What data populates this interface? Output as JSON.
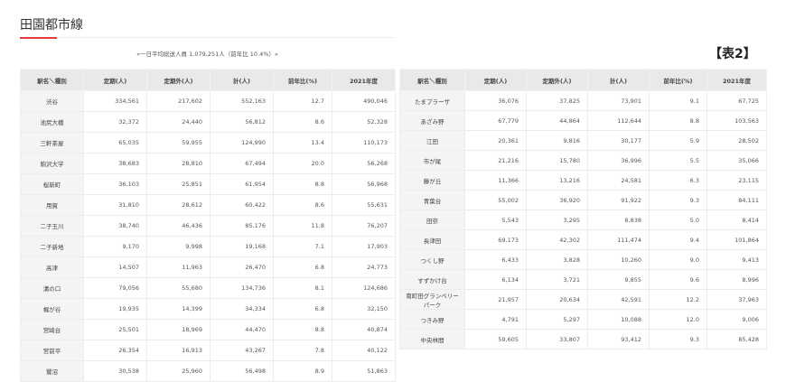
{
  "title": "田園都市線",
  "subtitle": "«一日平均総送人員 1,079,251人（前年比 10.4%）»",
  "table2_label": "【表2】",
  "headers": [
    "駅名＼種別",
    "定期(人)",
    "定期外(人)",
    "計(人)",
    "前年比(%)",
    "2021年度"
  ],
  "table1": [
    [
      "渋谷",
      "334,561",
      "217,602",
      "552,163",
      "12.7",
      "490,046"
    ],
    [
      "池尻大橋",
      "32,372",
      "24,440",
      "56,812",
      "8.6",
      "52,328"
    ],
    [
      "三軒茶屋",
      "65,035",
      "59,955",
      "124,990",
      "13.4",
      "110,173"
    ],
    [
      "駒沢大学",
      "38,683",
      "28,810",
      "67,494",
      "20.0",
      "56,268"
    ],
    [
      "桜新町",
      "36,103",
      "25,851",
      "61,954",
      "8.8",
      "56,968"
    ],
    [
      "用賀",
      "31,810",
      "28,612",
      "60,422",
      "8.6",
      "55,631"
    ],
    [
      "二子玉川",
      "38,740",
      "46,436",
      "85,176",
      "11.8",
      "76,207"
    ],
    [
      "二子新地",
      "9,170",
      "9,998",
      "19,168",
      "7.1",
      "17,903"
    ],
    [
      "高津",
      "14,507",
      "11,963",
      "26,470",
      "6.8",
      "24,773"
    ],
    [
      "溝の口",
      "79,056",
      "55,680",
      "134,736",
      "8.1",
      "124,686"
    ],
    [
      "梶が谷",
      "19,935",
      "14,399",
      "34,334",
      "6.8",
      "32,150"
    ],
    [
      "宮崎台",
      "25,501",
      "18,969",
      "44,470",
      "8.8",
      "40,874"
    ],
    [
      "宮前平",
      "26,354",
      "16,913",
      "43,267",
      "7.8",
      "40,122"
    ],
    [
      "鷺沼",
      "30,538",
      "25,960",
      "56,498",
      "8.9",
      "51,863"
    ]
  ],
  "table2": [
    [
      "たまプラーザ",
      "36,076",
      "37,825",
      "73,901",
      "9.1",
      "67,725"
    ],
    [
      "あざみ野",
      "67,779",
      "44,864",
      "112,644",
      "8.8",
      "103,563"
    ],
    [
      "江田",
      "20,361",
      "9,816",
      "30,177",
      "5.9",
      "28,502"
    ],
    [
      "市が尾",
      "21,216",
      "15,780",
      "36,996",
      "5.5",
      "35,066"
    ],
    [
      "藤が丘",
      "11,366",
      "13,216",
      "24,581",
      "6.3",
      "23,115"
    ],
    [
      "青葉台",
      "55,002",
      "36,920",
      "91,922",
      "9.3",
      "84,111"
    ],
    [
      "田奈",
      "5,543",
      "3,295",
      "8,838",
      "5.0",
      "8,414"
    ],
    [
      "長津田",
      "69,173",
      "42,302",
      "111,474",
      "9.4",
      "101,864"
    ],
    [
      "つくし野",
      "6,433",
      "3,828",
      "10,260",
      "9.0",
      "9,413"
    ],
    [
      "すずかけ台",
      "6,134",
      "3,721",
      "9,855",
      "9.6",
      "8,996"
    ],
    [
      "南町田グランベリーパーク",
      "21,957",
      "20,634",
      "42,591",
      "12.2",
      "37,963"
    ],
    [
      "つきみ野",
      "4,791",
      "5,297",
      "10,088",
      "12.0",
      "9,006"
    ],
    [
      "中央林間",
      "59,605",
      "33,807",
      "93,412",
      "9.3",
      "85,428"
    ]
  ]
}
